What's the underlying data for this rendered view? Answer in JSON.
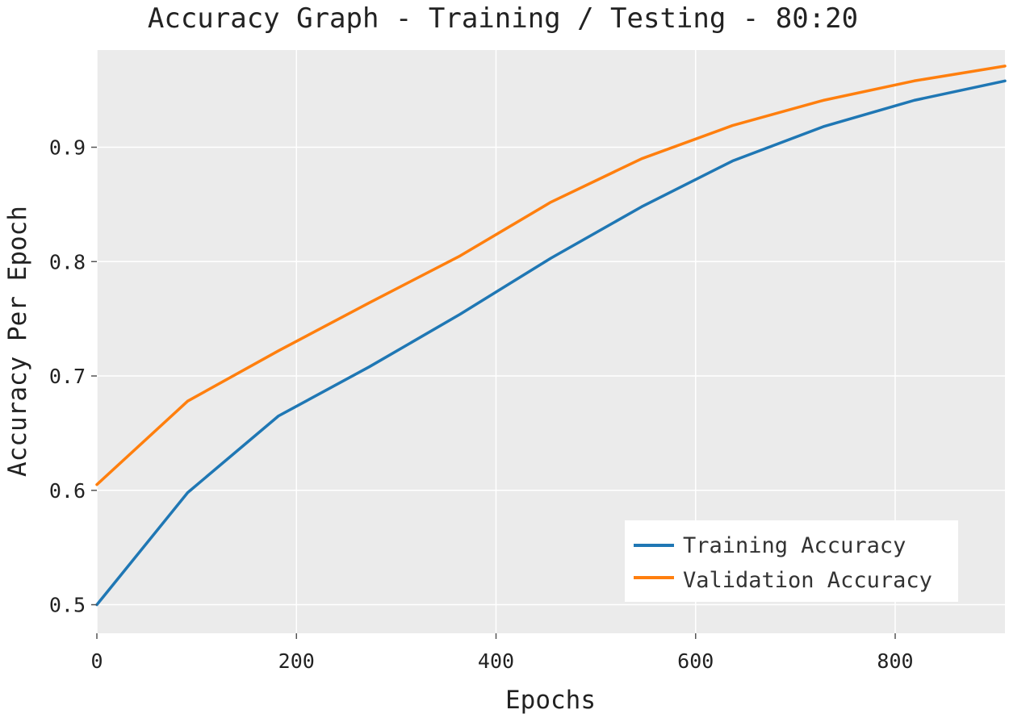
{
  "chart_data": {
    "type": "line",
    "title": "Accuracy Graph - Training / Testing - 80:20",
    "xlabel": "Epochs",
    "ylabel": "Accuracy Per Epoch",
    "xlim": [
      0,
      910
    ],
    "ylim": [
      0.475,
      0.985
    ],
    "xticks": [
      0,
      200,
      400,
      600,
      800
    ],
    "yticks": [
      0.5,
      0.6,
      0.7,
      0.8,
      0.9
    ],
    "x": [
      0,
      91,
      182,
      273,
      364,
      455,
      546,
      637,
      728,
      819,
      910
    ],
    "series": [
      {
        "name": "Training Accuracy",
        "color": "#1f77b4",
        "values": [
          0.5,
          0.598,
          0.665,
          0.708,
          0.754,
          0.803,
          0.848,
          0.888,
          0.918,
          0.941,
          0.958
        ]
      },
      {
        "name": "Validation Accuracy",
        "color": "#ff7f0e",
        "values": [
          0.605,
          0.678,
          0.722,
          0.764,
          0.805,
          0.852,
          0.89,
          0.919,
          0.941,
          0.958,
          0.971
        ]
      }
    ],
    "grid": true,
    "legend_position": "bottom-right",
    "background_color": "#ebebeb",
    "grid_color": "#ffffff"
  }
}
